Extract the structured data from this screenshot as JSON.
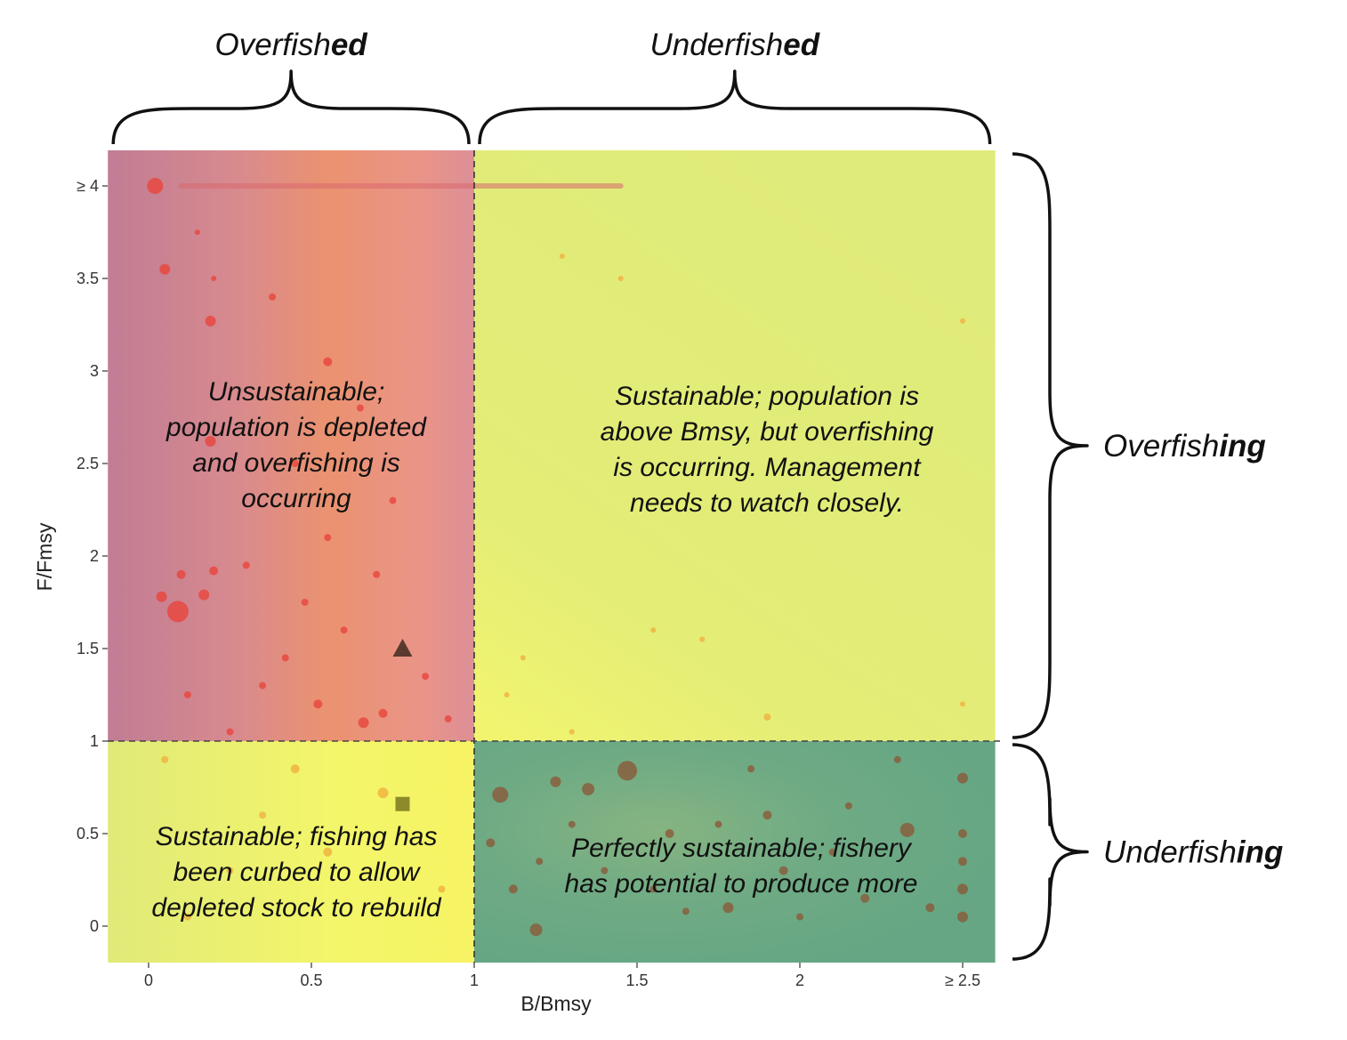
{
  "chart_data": {
    "type": "scatter",
    "title": "",
    "xlabel": "B/Bmsy",
    "ylabel": "F/Fmsy",
    "xlim": [
      -0.125,
      2.6
    ],
    "ylim": [
      -0.2,
      4.2
    ],
    "x_ticks": [
      {
        "value": 0,
        "label": "0"
      },
      {
        "value": 0.5,
        "label": "0.5"
      },
      {
        "value": 1,
        "label": "1"
      },
      {
        "value": 1.5,
        "label": "1.5"
      },
      {
        "value": 2,
        "label": "2"
      },
      {
        "value": 2.5,
        "label": "≥ 2.5"
      }
    ],
    "y_ticks": [
      {
        "value": 0,
        "label": "0"
      },
      {
        "value": 0.5,
        "label": "0.5"
      },
      {
        "value": 1,
        "label": "1"
      },
      {
        "value": 1.5,
        "label": "1.5"
      },
      {
        "value": 2,
        "label": "2"
      },
      {
        "value": 2.5,
        "label": "2.5"
      },
      {
        "value": 3,
        "label": "3"
      },
      {
        "value": 3.5,
        "label": "3.5"
      },
      {
        "value": 4,
        "label": "≥ 4"
      }
    ],
    "reference_lines": {
      "x": 1,
      "y": 1,
      "style": "dashed"
    },
    "quadrants": [
      {
        "id": "overfished-overfishing",
        "x_range": [
          -0.125,
          1
        ],
        "y_range": [
          1,
          4.2
        ],
        "color": "#c97f8f",
        "label_lines": [
          "Unsustainable;",
          "population is depleted",
          "and overfishing is",
          "occurring"
        ]
      },
      {
        "id": "underfished-overfishing",
        "x_range": [
          1,
          2.6
        ],
        "y_range": [
          1,
          4.2
        ],
        "color": "#dfeb7a",
        "label_lines": [
          "Sustainable; population is",
          "above Bmsy, but overfishing",
          "is occurring. Management",
          "needs to watch closely."
        ]
      },
      {
        "id": "overfished-underfishing",
        "x_range": [
          -0.125,
          1
        ],
        "y_range": [
          -0.2,
          1
        ],
        "color": "#ecf172",
        "label_lines": [
          "Sustainable; fishing has",
          "been curbed to allow",
          "depleted stock to rebuild"
        ]
      },
      {
        "id": "underfished-underfishing",
        "x_range": [
          1,
          2.6
        ],
        "y_range": [
          -0.2,
          1
        ],
        "color": "#6aa884",
        "label_lines": [
          "Perfectly sustainable; fishery",
          "has potential to produce more"
        ]
      }
    ],
    "brackets": {
      "top": [
        {
          "plain": "Overfish",
          "bold": "ed",
          "x_range": [
            -0.125,
            1
          ]
        },
        {
          "plain": "Underfish",
          "bold": "ed",
          "x_range": [
            1,
            2.6
          ]
        }
      ],
      "right": [
        {
          "plain": "Overfish",
          "bold": "ing",
          "y_range": [
            1,
            4.2
          ]
        },
        {
          "plain": "Underfish",
          "bold": "ing",
          "y_range": [
            -0.2,
            1
          ]
        }
      ]
    },
    "highlight_markers": [
      {
        "shape": "triangle",
        "x": 0.78,
        "y": 1.5,
        "color": "#5a3a2e"
      },
      {
        "shape": "square",
        "x": 0.78,
        "y": 0.66,
        "color": "#8c8a2a"
      }
    ],
    "series": [
      {
        "color": "#e8453c",
        "points": [
          [
            0.02,
            4.0,
            9
          ],
          [
            0.05,
            3.55,
            6
          ],
          [
            0.19,
            3.27,
            6
          ],
          [
            0.55,
            3.05,
            5
          ],
          [
            0.19,
            2.62,
            6
          ],
          [
            0.09,
            1.7,
            12
          ],
          [
            0.04,
            1.78,
            6
          ],
          [
            0.17,
            1.79,
            6
          ],
          [
            0.1,
            1.9,
            5
          ],
          [
            0.2,
            1.92,
            5
          ],
          [
            0.3,
            1.95,
            4
          ],
          [
            0.52,
            1.2,
            5
          ],
          [
            0.66,
            1.1,
            6
          ],
          [
            0.72,
            1.15,
            5
          ],
          [
            0.35,
            1.3,
            4
          ],
          [
            0.42,
            1.45,
            4
          ],
          [
            0.6,
            1.6,
            4
          ],
          [
            0.55,
            2.1,
            4
          ],
          [
            0.75,
            2.3,
            4
          ],
          [
            0.65,
            2.8,
            4
          ],
          [
            0.25,
            1.05,
            4
          ],
          [
            0.12,
            1.25,
            4
          ],
          [
            0.85,
            1.35,
            4
          ],
          [
            0.92,
            1.12,
            4
          ],
          [
            0.48,
            1.75,
            4
          ],
          [
            0.2,
            3.5,
            3
          ],
          [
            0.15,
            3.75,
            3
          ],
          [
            0.38,
            3.4,
            4
          ],
          [
            0.45,
            2.5,
            4
          ],
          [
            0.7,
            1.9,
            4
          ]
        ]
      },
      {
        "color": "#f0b040",
        "points": [
          [
            0.72,
            0.72,
            6
          ],
          [
            0.55,
            0.4,
            5
          ],
          [
            0.12,
            0.05,
            4
          ],
          [
            0.35,
            0.6,
            4
          ],
          [
            0.9,
            0.2,
            4
          ],
          [
            0.05,
            0.9,
            4
          ],
          [
            0.45,
            0.85,
            5
          ],
          [
            1.45,
            3.5,
            3
          ],
          [
            1.27,
            3.62,
            3
          ],
          [
            2.5,
            3.27,
            3
          ],
          [
            1.7,
            1.55,
            3
          ],
          [
            1.9,
            1.13,
            4
          ],
          [
            1.55,
            1.6,
            3
          ],
          [
            2.5,
            1.2,
            3
          ],
          [
            1.1,
            1.25,
            3
          ],
          [
            1.15,
            1.45,
            3
          ],
          [
            1.3,
            1.05,
            3
          ],
          [
            0.25,
            0.3,
            4
          ]
        ]
      },
      {
        "color": "#8a5a3a",
        "points": [
          [
            1.47,
            0.84,
            11
          ],
          [
            1.08,
            0.71,
            9
          ],
          [
            1.19,
            -0.02,
            7
          ],
          [
            2.5,
            0.8,
            6
          ],
          [
            2.33,
            0.52,
            8
          ],
          [
            1.35,
            0.74,
            7
          ],
          [
            1.25,
            0.78,
            6
          ],
          [
            1.78,
            0.1,
            6
          ],
          [
            2.2,
            0.15,
            5
          ],
          [
            2.5,
            0.2,
            6
          ],
          [
            2.5,
            0.05,
            6
          ],
          [
            2.5,
            0.35,
            5
          ],
          [
            2.5,
            0.5,
            5
          ],
          [
            1.6,
            0.5,
            5
          ],
          [
            1.9,
            0.6,
            5
          ],
          [
            1.05,
            0.45,
            5
          ],
          [
            1.12,
            0.2,
            5
          ],
          [
            2.3,
            0.9,
            4
          ],
          [
            1.95,
            0.3,
            5
          ],
          [
            2.1,
            0.4,
            4
          ],
          [
            1.65,
            0.08,
            4
          ],
          [
            2.0,
            0.05,
            4
          ],
          [
            1.4,
            0.3,
            4
          ],
          [
            1.75,
            0.55,
            4
          ],
          [
            2.4,
            0.1,
            5
          ],
          [
            2.15,
            0.65,
            4
          ],
          [
            1.3,
            0.55,
            4
          ],
          [
            1.2,
            0.35,
            4
          ],
          [
            1.55,
            0.2,
            4
          ],
          [
            1.85,
            0.85,
            4
          ]
        ]
      }
    ],
    "y_cap_band": {
      "y": 4.0,
      "x_range": [
        0.1,
        1.45
      ],
      "color": "#d9686e"
    }
  }
}
